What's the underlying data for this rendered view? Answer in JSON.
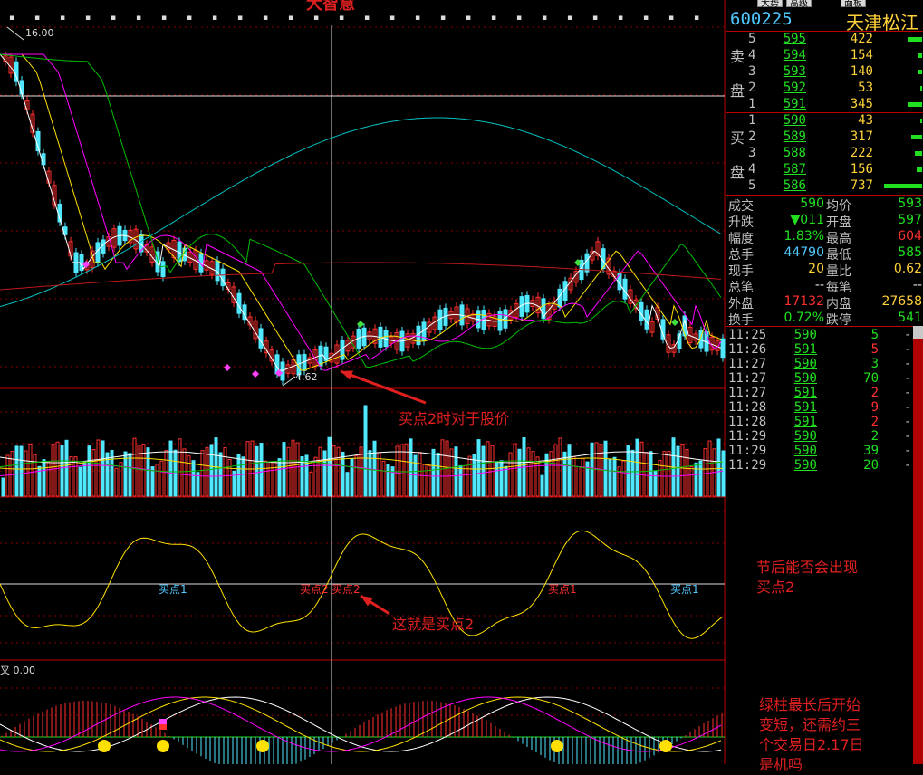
{
  "toolbar": {
    "logo": "大智慧",
    "buttons": [
      "大势",
      "高级",
      "面板"
    ]
  },
  "price_chart": {
    "high_label": "16.00",
    "low_label": "4.62",
    "up_color": "#ff3030",
    "down_color": "#4fe8ff",
    "ma_colors": [
      "#ffffff",
      "#ffe000",
      "#ff00ff",
      "#00c000",
      "#00c0c0",
      "#c01818"
    ]
  },
  "volume_chart": {},
  "oscillator": {
    "signal_labels": [
      {
        "text": "买点1",
        "color": "#4fc8ff"
      },
      {
        "text": "买点2",
        "color": "#ff3030"
      },
      {
        "text": "买点2",
        "color": "#ff3030"
      },
      {
        "text": "买点1",
        "color": "#ff3030"
      },
      {
        "text": "买点1",
        "color": "#4fc8ff"
      }
    ]
  },
  "macd": {
    "label": "叉",
    "value": "0.00"
  },
  "annotations": [
    {
      "text": "买点2时对于股价"
    },
    {
      "text": "这就是买点2"
    },
    {
      "text": "节后能否会出现\n买点2"
    },
    {
      "text": "绿柱最长后开始\n变短，还需约三\n个交易日2.17日\n是机吗"
    }
  ],
  "quote": {
    "code": "600225",
    "name": "天津松江",
    "sell_side_label": "卖盘",
    "buy_side_label": "买盘",
    "sell": [
      {
        "level": "5",
        "price": "595",
        "volume": "422"
      },
      {
        "level": "4",
        "price": "594",
        "volume": "154"
      },
      {
        "level": "3",
        "price": "593",
        "volume": "140"
      },
      {
        "level": "2",
        "price": "592",
        "volume": "53"
      },
      {
        "level": "1",
        "price": "591",
        "volume": "345"
      }
    ],
    "buy": [
      {
        "level": "1",
        "price": "590",
        "volume": "43"
      },
      {
        "level": "2",
        "price": "589",
        "volume": "317"
      },
      {
        "level": "3",
        "price": "588",
        "volume": "222"
      },
      {
        "level": "4",
        "price": "587",
        "volume": "156"
      },
      {
        "level": "5",
        "price": "586",
        "volume": "737"
      }
    ],
    "stats": [
      {
        "l1": "成交",
        "v1": "590",
        "l2": "均价",
        "v2": "593"
      },
      {
        "l1": "升跌",
        "v1": "▼011",
        "l2": "开盘",
        "v2": "597"
      },
      {
        "l1": "幅度",
        "v1": "1.83%",
        "l2": "最高",
        "v2": "604"
      },
      {
        "l1": "总手",
        "v1": "44790",
        "l2": "最低",
        "v2": "585"
      },
      {
        "l1": "现手",
        "v1": "20",
        "l2": "量比",
        "v2": "0.62"
      },
      {
        "l1": "总笔",
        "v1": "--",
        "l2": "每笔",
        "v2": "--"
      },
      {
        "l1": "外盘",
        "v1": "17132",
        "l2": "内盘",
        "v2": "27658"
      },
      {
        "l1": "换手",
        "v1": "0.72%",
        "l2": "跌停",
        "v2": "541"
      }
    ],
    "ticks": [
      {
        "time": "11:25",
        "price": "590",
        "vol": "5",
        "dir": "-"
      },
      {
        "time": "11:26",
        "price": "591",
        "vol": "5",
        "dir": "-"
      },
      {
        "time": "11:27",
        "price": "590",
        "vol": "3",
        "dir": "-"
      },
      {
        "time": "11:27",
        "price": "590",
        "vol": "70",
        "dir": "-"
      },
      {
        "time": "11:27",
        "price": "591",
        "vol": "2",
        "dir": "-"
      },
      {
        "time": "11:28",
        "price": "591",
        "vol": "9",
        "dir": "-"
      },
      {
        "time": "11:28",
        "price": "591",
        "vol": "2",
        "dir": "-"
      },
      {
        "time": "11:29",
        "price": "590",
        "vol": "2",
        "dir": "-"
      },
      {
        "time": "11:29",
        "price": "590",
        "vol": "39",
        "dir": "-"
      },
      {
        "time": "11:29",
        "price": "590",
        "vol": "20",
        "dir": "-"
      }
    ]
  }
}
